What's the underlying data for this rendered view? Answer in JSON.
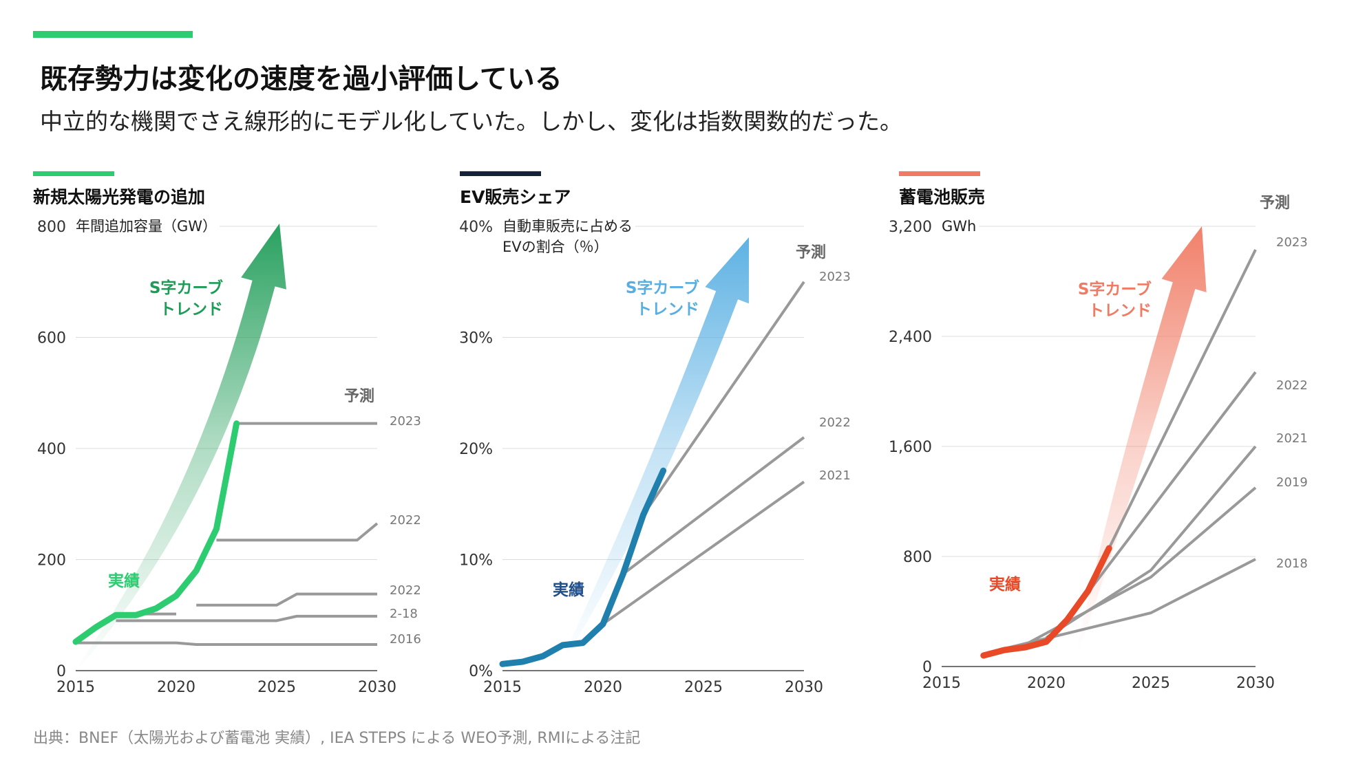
{
  "title": "既存勢力は変化の速度を過小評価している",
  "subtitle": "中立的な機関でさえ線形的にモデル化していた。しかし、変化は指数関数的だった。",
  "source": "出典：BNEF（太陽光および蓄電池 実績）, IEA STEPS による WEO予測, RMIによる注記",
  "colors": {
    "accent_top": "#2ecc71",
    "solar": "#2ecc71",
    "solar_dark": "#1e9c57",
    "ev": "#1f7fad",
    "ev_light": "#56aee2",
    "ev_actual_label": "#1f4f8a",
    "battery": "#e84a27",
    "battery_light": "#f07a63",
    "forecast": "#999999"
  },
  "chart_data": [
    {
      "type": "line",
      "title": "新規太陽光発電の追加",
      "unit_label": "年間追加容量（GW）",
      "xlim": [
        2015,
        2030
      ],
      "ylim": [
        0,
        800
      ],
      "xticks": [
        "2015",
        "2020",
        "2025",
        "2030"
      ],
      "yticks": [
        {
          "v": 0,
          "label": "0"
        },
        {
          "v": 200,
          "label": "200"
        },
        {
          "v": 400,
          "label": "400"
        },
        {
          "v": 600,
          "label": "600"
        },
        {
          "v": 800,
          "label": "800"
        }
      ],
      "forecast_label": "予測",
      "arrow_label": [
        "S字カーブ",
        "トレンド"
      ],
      "actual_label": "実績",
      "actual": {
        "x": [
          2015,
          2016,
          2017,
          2018,
          2019,
          2020,
          2021,
          2022,
          2023
        ],
        "y": [
          52,
          78,
          100,
          100,
          112,
          135,
          180,
          255,
          445
        ]
      },
      "forecasts": [
        {
          "label": "2023",
          "x": [
            2023,
            2030
          ],
          "y": [
            445,
            445
          ]
        },
        {
          "label": "2022",
          "x": [
            2022,
            2029,
            2030
          ],
          "y": [
            235,
            235,
            265
          ]
        },
        {
          "label": "2022",
          "x": [
            2021,
            2025,
            2026,
            2030
          ],
          "y": [
            118,
            118,
            138,
            138
          ]
        },
        {
          "label": "2-18",
          "x": [
            2017,
            2025,
            2026,
            2030
          ],
          "y": [
            90,
            90,
            98,
            98
          ]
        },
        {
          "label": "2016",
          "x": [
            2015,
            2020,
            2021,
            2030
          ],
          "y": [
            50,
            50,
            47,
            47
          ]
        },
        {
          "label": "",
          "x": [
            2017,
            2020
          ],
          "y": [
            102,
            102
          ]
        }
      ]
    },
    {
      "type": "line",
      "title": "EV販売シェア",
      "unit_label": [
        "自動車販売に占める",
        "EVの割合（％）"
      ],
      "xlim": [
        2015,
        2030
      ],
      "ylim": [
        0,
        40
      ],
      "xticks": [
        "2015",
        "2020",
        "2025",
        "2030"
      ],
      "yticks": [
        {
          "v": 0,
          "label": "0%"
        },
        {
          "v": 10,
          "label": "10%"
        },
        {
          "v": 20,
          "label": "20%"
        },
        {
          "v": 30,
          "label": "30%"
        },
        {
          "v": 40,
          "label": "40%"
        }
      ],
      "forecast_label": "予測",
      "arrow_label": [
        "S字カーブ",
        "トレンド"
      ],
      "actual_label": "実績",
      "actual": {
        "x": [
          2015,
          2016,
          2017,
          2018,
          2019,
          2020,
          2021,
          2022,
          2023
        ],
        "y": [
          0.6,
          0.8,
          1.3,
          2.3,
          2.5,
          4.2,
          8.7,
          14,
          18
        ]
      },
      "forecasts": [
        {
          "label": "2023",
          "x": [
            2022,
            2030
          ],
          "y": [
            14,
            35
          ]
        },
        {
          "label": "2022",
          "x": [
            2021,
            2030
          ],
          "y": [
            8.7,
            21
          ]
        },
        {
          "label": "2021",
          "x": [
            2020,
            2030
          ],
          "y": [
            4.2,
            17
          ]
        }
      ]
    },
    {
      "type": "line",
      "title": "蓄電池販売",
      "unit_label": "GWh",
      "xlim": [
        2015,
        2030
      ],
      "ylim": [
        0,
        3200
      ],
      "xticks": [
        "2015",
        "2020",
        "2025",
        "2030"
      ],
      "yticks": [
        {
          "v": 0,
          "label": "0"
        },
        {
          "v": 800,
          "label": "800"
        },
        {
          "v": 1600,
          "label": "1,600"
        },
        {
          "v": 2400,
          "label": "2,400"
        },
        {
          "v": 3200,
          "label": "3,200"
        }
      ],
      "forecast_label": "予測",
      "arrow_label": [
        "S字カーブ",
        "トレンド"
      ],
      "actual_label": "実績",
      "actual": {
        "x": [
          2017,
          2018,
          2019,
          2020,
          2021,
          2022,
          2023
        ],
        "y": [
          80,
          120,
          140,
          180,
          340,
          550,
          860
        ]
      },
      "forecasts": [
        {
          "label": "2023",
          "x": [
            2022,
            2030
          ],
          "y": [
            550,
            3030
          ]
        },
        {
          "label": "2022",
          "x": [
            2021,
            2030
          ],
          "y": [
            340,
            2140
          ]
        },
        {
          "label": "2021",
          "x": [
            2020,
            2025,
            2030
          ],
          "y": [
            210,
            700,
            1600
          ]
        },
        {
          "label": "2019",
          "x": [
            2019,
            2025,
            2030
          ],
          "y": [
            160,
            650,
            1300
          ]
        },
        {
          "label": "2018",
          "x": [
            2018,
            2025,
            2030
          ],
          "y": [
            130,
            390,
            780
          ]
        }
      ]
    }
  ]
}
